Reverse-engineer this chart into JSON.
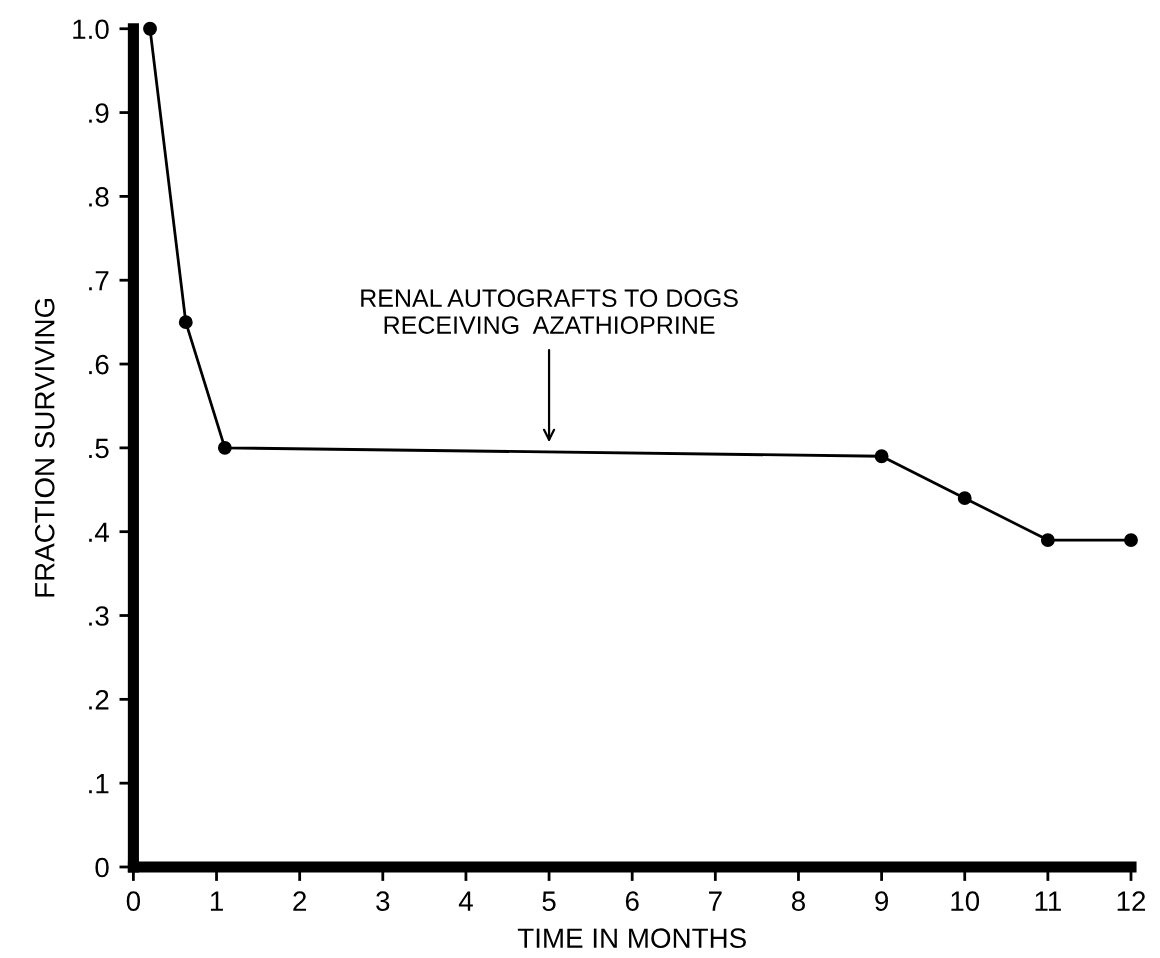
{
  "chart_data": {
    "type": "line",
    "xlabel": "TIME IN MONTHS",
    "ylabel": "FRACTION SURVIVING",
    "x": [
      0.2,
      0.63,
      1.1,
      9.0,
      10.0,
      11.0,
      12.0
    ],
    "values": [
      1.0,
      0.65,
      0.5,
      0.49,
      0.44,
      0.39,
      0.39
    ],
    "color": "#000000",
    "marker": "circle",
    "line_style": "solid",
    "grid": false,
    "xlim": [
      0,
      12
    ],
    "ylim": [
      0,
      1.0
    ],
    "xticks": [
      0,
      1,
      2,
      3,
      4,
      5,
      6,
      7,
      8,
      9,
      10,
      11,
      12
    ],
    "yticks": [
      {
        "value": 0,
        "label": "0"
      },
      {
        "value": 0.1,
        "label": ".1"
      },
      {
        "value": 0.2,
        "label": ".2"
      },
      {
        "value": 0.3,
        "label": ".3"
      },
      {
        "value": 0.4,
        "label": ".4"
      },
      {
        "value": 0.5,
        "label": ".5"
      },
      {
        "value": 0.6,
        "label": ".6"
      },
      {
        "value": 0.7,
        "label": ".7"
      },
      {
        "value": 0.8,
        "label": ".8"
      },
      {
        "value": 0.9,
        "label": ".9"
      },
      {
        "value": 1.0,
        "label": "1.0"
      }
    ],
    "annotations": [
      {
        "text": "RENAL AUTOGRAFTS TO DOGS\nRECEIVING  AZATHIOPRINE",
        "x": 5,
        "y": 0.5
      }
    ]
  }
}
